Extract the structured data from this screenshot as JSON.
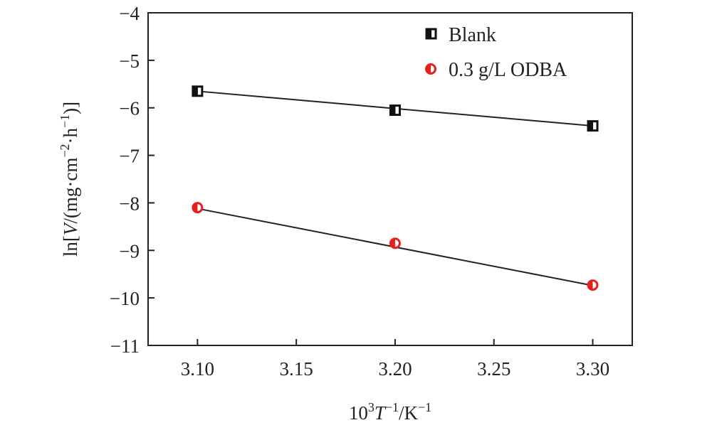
{
  "chart_data": {
    "type": "scatter",
    "title": "",
    "xlabel_parts": [
      "10",
      "3",
      "T",
      "−1",
      "/K",
      "−1"
    ],
    "ylabel_parts": [
      "ln[",
      "V",
      "/(mg·cm",
      "−2",
      "·h",
      "−1",
      ")]"
    ],
    "xlim": [
      3.075,
      3.32
    ],
    "ylim": [
      -11,
      -4
    ],
    "x_ticks": [
      3.1,
      3.15,
      3.2,
      3.25,
      3.3
    ],
    "x_tick_labels": [
      "3.10",
      "3.15",
      "3.20",
      "3.25",
      "3.30"
    ],
    "y_ticks": [
      -4,
      -5,
      -6,
      -7,
      -8,
      -9,
      -10,
      -11
    ],
    "y_tick_labels": [
      "−4",
      "−5",
      "−6",
      "−7",
      "−8",
      "−9",
      "−10",
      "−11"
    ],
    "grid": false,
    "legend_position": "top-right",
    "series": [
      {
        "name": "Blank",
        "marker": "square",
        "color": "#111111",
        "x": [
          3.1,
          3.2,
          3.3
        ],
        "y": [
          -5.65,
          -6.05,
          -6.38
        ],
        "fit": {
          "x": [
            3.1,
            3.3
          ],
          "y": [
            -5.65,
            -6.38
          ]
        }
      },
      {
        "name": "0.3 g/L ODBA",
        "marker": "circle",
        "color": "#e8201c",
        "x": [
          3.1,
          3.2,
          3.3
        ],
        "y": [
          -8.1,
          -8.85,
          -9.73
        ],
        "fit": {
          "x": [
            3.1,
            3.3
          ],
          "y": [
            -8.12,
            -9.74
          ]
        }
      }
    ]
  }
}
